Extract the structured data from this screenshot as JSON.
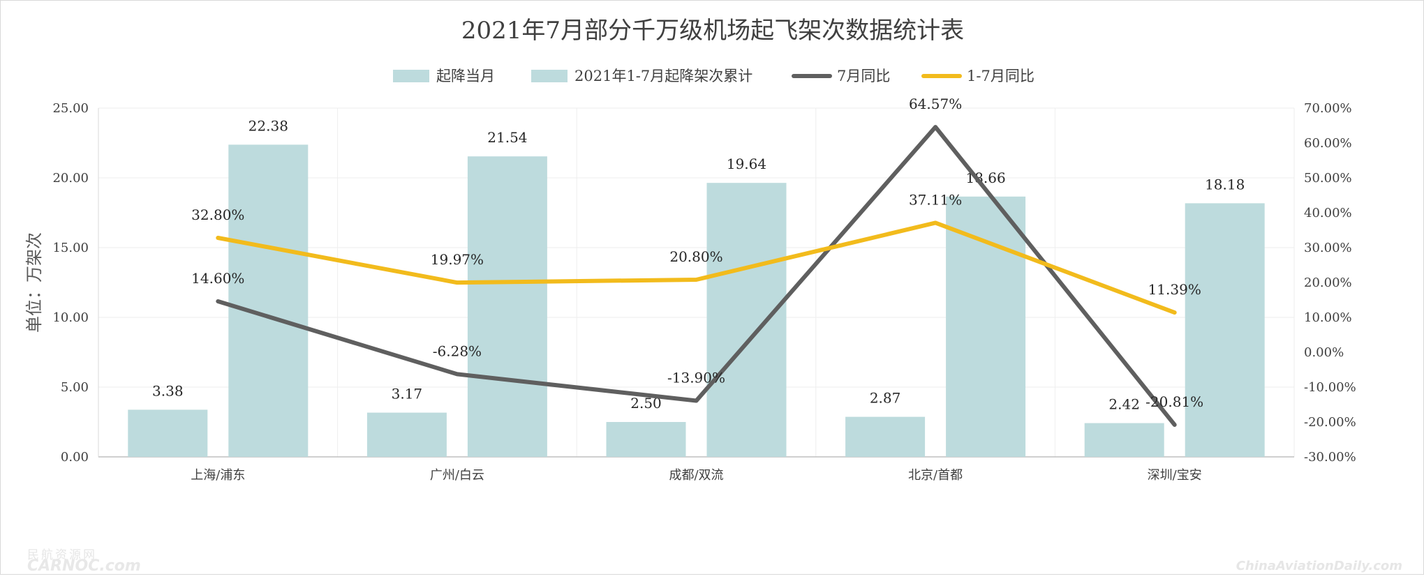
{
  "chart_data": {
    "type": "bar",
    "title": "2021年7月部分千万级机场起飞架次数据统计表",
    "ylabel": "单位：万架次",
    "categories": [
      "上海/浦东",
      "广州/白云",
      "成都/双流",
      "北京/首都",
      "深圳/宝安"
    ],
    "ylim": [
      0,
      25
    ],
    "y2lim": [
      -0.3,
      0.7
    ],
    "yticks": [
      "0.00",
      "5.00",
      "10.00",
      "15.00",
      "20.00",
      "25.00"
    ],
    "y2ticks": [
      "-30.00%",
      "-20.00%",
      "-10.00%",
      "0.00%",
      "10.00%",
      "20.00%",
      "30.00%",
      "40.00%",
      "50.00%",
      "60.00%",
      "70.00%"
    ],
    "legend_position": "top",
    "grid": true,
    "series": [
      {
        "name": "起降当月",
        "kind": "bar",
        "axis": "left",
        "color": "#bddbdd",
        "values": [
          3.38,
          3.17,
          2.5,
          2.87,
          2.42
        ],
        "labels": [
          "3.38",
          "3.17",
          "2.50",
          "2.87",
          "2.42"
        ]
      },
      {
        "name": "2021年1-7月起降架次累计",
        "kind": "bar",
        "axis": "left",
        "color": "#bddbdd",
        "values": [
          22.38,
          21.54,
          19.64,
          18.66,
          18.18
        ],
        "labels": [
          "22.38",
          "21.54",
          "19.64",
          "18.66",
          "18.18"
        ]
      },
      {
        "name": "7月同比",
        "kind": "line",
        "axis": "right",
        "color": "#5f5f5f",
        "values": [
          0.146,
          -0.0628,
          -0.139,
          0.6457,
          -0.2081
        ],
        "labels": [
          "14.60%",
          "-6.28%",
          "-13.90%",
          "64.57%",
          "-20.81%"
        ]
      },
      {
        "name": "1-7月同比",
        "kind": "line",
        "axis": "right",
        "color": "#f2bb1c",
        "values": [
          0.328,
          0.1997,
          0.208,
          0.3711,
          0.1139
        ],
        "labels": [
          "32.80%",
          "19.97%",
          "20.80%",
          "37.11%",
          "11.39%"
        ]
      }
    ]
  },
  "watermark": {
    "left_cn": "民航资源网",
    "left_en": "CARNOC.com",
    "right": "ChinaAviationDaily.com"
  }
}
